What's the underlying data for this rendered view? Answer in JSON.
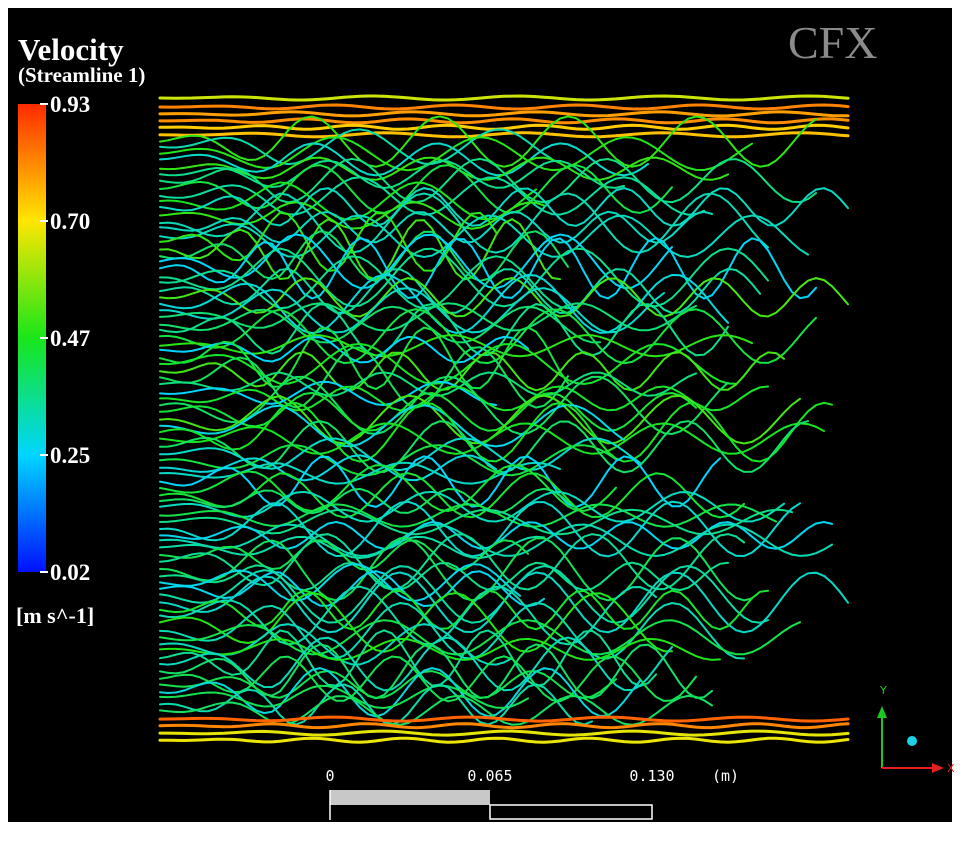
{
  "title": "Velocity",
  "subtitle": "(Streamline 1)",
  "legend": {
    "ticks": [
      "0.93",
      "0.70",
      "0.47",
      "0.25",
      "0.02"
    ],
    "unit": "[m s^-1]"
  },
  "scale_bar": {
    "labels": [
      "0",
      "0.065",
      "0.130"
    ],
    "unit": "(m)"
  },
  "logo": "CFX",
  "axes": {
    "y": "Y",
    "x": "X"
  }
}
